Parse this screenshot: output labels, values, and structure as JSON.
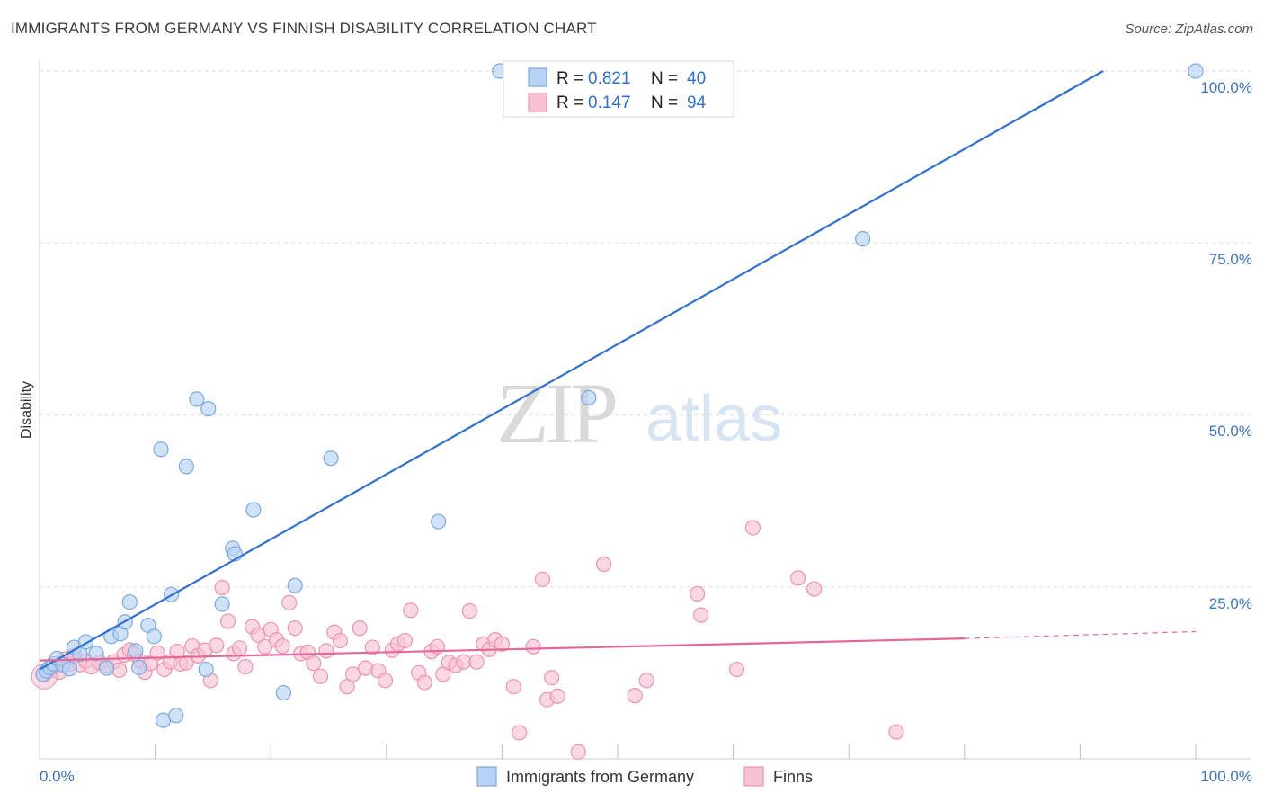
{
  "title": "IMMIGRANTS FROM GERMANY VS FINNISH DISABILITY CORRELATION CHART",
  "source": "Source: ZipAtlas.com",
  "watermark": {
    "zip": "ZIP",
    "atlas": "atlas"
  },
  "legend": {
    "r_label": "R =",
    "n_label": "N =",
    "series": [
      {
        "r": "0.821",
        "n": "40"
      },
      {
        "r": "0.147",
        "n": "94"
      }
    ]
  },
  "colors": {
    "blue_fill": "#b7d2f3",
    "blue_stroke": "#7aa8e0",
    "blue_line": "#2e6fd1",
    "pink_fill": "#f7c3d3",
    "pink_stroke": "#ec93af",
    "pink_line": "#e5679a",
    "grid": "#dddddd",
    "tick_text": "#3a73c4"
  },
  "chart_data": {
    "type": "scatter",
    "title": "IMMIGRANTS FROM GERMANY VS FINNISH DISABILITY CORRELATION CHART",
    "xlabel": "",
    "ylabel": "Disability",
    "xlim": [
      0,
      100
    ],
    "ylim": [
      0,
      100
    ],
    "x_tick_labels": [
      "0.0%",
      "100.0%"
    ],
    "y_ticks": [
      25,
      50,
      75,
      100
    ],
    "y_tick_labels": [
      "25.0%",
      "50.0%",
      "75.0%",
      "100.0%"
    ],
    "grid": true,
    "legend_position": "top-center",
    "series": [
      {
        "name": "Immigrants from Germany",
        "color": "#7aa8e0",
        "r": 0.821,
        "n": 40,
        "trend": {
          "x0": 0,
          "y0": 13.0,
          "x1": 92,
          "y1": 100,
          "dashed_to": null
        },
        "points": [
          [
            0.3,
            12.3
          ],
          [
            0.6,
            12.8
          ],
          [
            0.9,
            13.3
          ],
          [
            1.2,
            13.8
          ],
          [
            1.5,
            14.6
          ],
          [
            2.0,
            13.7
          ],
          [
            2.6,
            13.1
          ],
          [
            3.0,
            16.2
          ],
          [
            3.5,
            15.2
          ],
          [
            4.0,
            17.0
          ],
          [
            4.9,
            15.3
          ],
          [
            5.8,
            13.2
          ],
          [
            6.2,
            17.8
          ],
          [
            7.0,
            18.2
          ],
          [
            7.4,
            19.9
          ],
          [
            7.8,
            22.8
          ],
          [
            8.3,
            15.7
          ],
          [
            8.6,
            13.3
          ],
          [
            9.4,
            19.4
          ],
          [
            9.9,
            17.8
          ],
          [
            10.5,
            45.0
          ],
          [
            10.7,
            5.6
          ],
          [
            11.4,
            23.9
          ],
          [
            11.8,
            6.3
          ],
          [
            12.7,
            42.5
          ],
          [
            13.6,
            52.3
          ],
          [
            14.4,
            13.0
          ],
          [
            14.6,
            50.9
          ],
          [
            15.8,
            22.5
          ],
          [
            16.7,
            30.6
          ],
          [
            16.9,
            29.8
          ],
          [
            18.5,
            36.2
          ],
          [
            21.1,
            9.6
          ],
          [
            22.1,
            25.2
          ],
          [
            25.2,
            43.7
          ],
          [
            34.5,
            34.5
          ],
          [
            39.8,
            100
          ],
          [
            47.5,
            52.5
          ],
          [
            71.2,
            75.6
          ],
          [
            100.0,
            100
          ]
        ]
      },
      {
        "name": "Finns",
        "color": "#ec93af",
        "r": 0.147,
        "n": 94,
        "trend": {
          "x0": 0,
          "y0": 14.3,
          "x1": 80,
          "y1": 17.5,
          "dashed_to": [
            100,
            18.5
          ]
        },
        "points": [
          [
            0.4,
            12.2
          ],
          [
            0.8,
            12.7
          ],
          [
            1.2,
            13.2
          ],
          [
            1.7,
            12.6
          ],
          [
            2.1,
            14.5
          ],
          [
            2.6,
            13.8
          ],
          [
            3.0,
            15.0
          ],
          [
            3.5,
            13.7
          ],
          [
            4.0,
            14.2
          ],
          [
            4.5,
            13.4
          ],
          [
            5.2,
            14.0
          ],
          [
            5.8,
            13.6
          ],
          [
            6.4,
            14.1
          ],
          [
            6.9,
            12.9
          ],
          [
            7.3,
            15.1
          ],
          [
            7.8,
            15.8
          ],
          [
            8.2,
            15.2
          ],
          [
            8.7,
            14.2
          ],
          [
            9.1,
            12.6
          ],
          [
            9.6,
            13.9
          ],
          [
            10.2,
            15.4
          ],
          [
            10.8,
            13.0
          ],
          [
            11.3,
            14.1
          ],
          [
            11.9,
            15.6
          ],
          [
            12.2,
            13.8
          ],
          [
            12.7,
            14.0
          ],
          [
            13.2,
            16.4
          ],
          [
            13.7,
            15.0
          ],
          [
            14.3,
            15.8
          ],
          [
            14.8,
            11.4
          ],
          [
            15.3,
            16.5
          ],
          [
            15.8,
            24.9
          ],
          [
            16.3,
            20.0
          ],
          [
            16.8,
            15.3
          ],
          [
            17.3,
            16.1
          ],
          [
            17.8,
            13.4
          ],
          [
            18.4,
            19.2
          ],
          [
            18.9,
            18.0
          ],
          [
            19.5,
            16.3
          ],
          [
            20.0,
            18.8
          ],
          [
            20.5,
            17.3
          ],
          [
            21.0,
            16.4
          ],
          [
            21.6,
            22.7
          ],
          [
            22.1,
            19.0
          ],
          [
            22.6,
            15.3
          ],
          [
            23.2,
            15.5
          ],
          [
            23.7,
            13.9
          ],
          [
            24.3,
            12.0
          ],
          [
            24.8,
            15.7
          ],
          [
            25.5,
            18.4
          ],
          [
            26.0,
            17.2
          ],
          [
            26.6,
            10.5
          ],
          [
            27.1,
            12.3
          ],
          [
            27.7,
            19.0
          ],
          [
            28.2,
            13.2
          ],
          [
            28.8,
            16.2
          ],
          [
            29.3,
            12.8
          ],
          [
            29.9,
            11.4
          ],
          [
            30.5,
            15.8
          ],
          [
            31.0,
            16.7
          ],
          [
            31.6,
            17.2
          ],
          [
            32.1,
            21.6
          ],
          [
            32.8,
            12.5
          ],
          [
            33.3,
            11.1
          ],
          [
            33.9,
            15.6
          ],
          [
            34.4,
            16.3
          ],
          [
            34.9,
            12.3
          ],
          [
            35.4,
            14.0
          ],
          [
            36.0,
            13.6
          ],
          [
            36.7,
            14.1
          ],
          [
            37.2,
            21.5
          ],
          [
            37.8,
            14.1
          ],
          [
            38.4,
            16.7
          ],
          [
            38.9,
            15.9
          ],
          [
            39.4,
            17.3
          ],
          [
            40.0,
            16.7
          ],
          [
            41.0,
            10.5
          ],
          [
            41.5,
            3.8
          ],
          [
            42.7,
            16.3
          ],
          [
            43.5,
            26.1
          ],
          [
            43.9,
            8.6
          ],
          [
            44.3,
            11.8
          ],
          [
            44.8,
            9.1
          ],
          [
            46.6,
            1.0
          ],
          [
            48.8,
            28.3
          ],
          [
            51.5,
            9.2
          ],
          [
            52.5,
            11.4
          ],
          [
            56.9,
            24.0
          ],
          [
            57.2,
            20.9
          ],
          [
            60.3,
            13.0
          ],
          [
            61.7,
            33.6
          ],
          [
            65.6,
            26.3
          ],
          [
            67.0,
            24.7
          ],
          [
            74.1,
            3.9
          ]
        ]
      }
    ]
  },
  "bottom_legend": [
    "Immigrants from Germany",
    "Finns"
  ]
}
